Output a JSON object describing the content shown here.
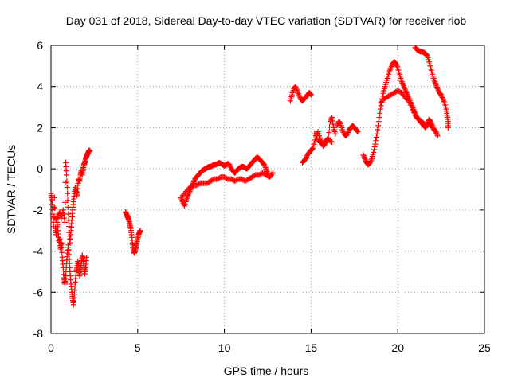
{
  "chart_data": {
    "type": "scatter",
    "title": "Day 031 of 2018, Sidereal Day-to-day VTEC variation (SDTVAR) for receiver riob",
    "xlabel": "GPS time / hours",
    "ylabel": "SDTVAR / TECUs",
    "xlim": [
      0,
      25
    ],
    "ylim": [
      -8,
      6
    ],
    "xticks": [
      0,
      5,
      10,
      15,
      20,
      25
    ],
    "yticks": [
      -8,
      -6,
      -4,
      -2,
      0,
      2,
      4,
      6
    ],
    "grid": true,
    "marker": "+",
    "color": "#ff0000",
    "segments": [
      {
        "name": "seg-a",
        "points": [
          [
            0.0,
            -1.2
          ],
          [
            0.05,
            -1.5
          ],
          [
            0.1,
            -2.2
          ],
          [
            0.15,
            -2.8
          ],
          [
            0.2,
            -1.4
          ],
          [
            0.25,
            -2.9
          ],
          [
            0.3,
            -3.2
          ],
          [
            0.35,
            -2.6
          ],
          [
            0.4,
            -3.0
          ],
          [
            0.45,
            -3.5
          ],
          [
            0.5,
            -3.4
          ],
          [
            0.55,
            -3.9
          ],
          [
            0.6,
            -3.6
          ],
          [
            0.65,
            -4.3
          ],
          [
            0.7,
            -4.8
          ],
          [
            0.75,
            -5.3
          ],
          [
            0.8,
            -5.6
          ],
          [
            0.85,
            -5.2
          ],
          [
            0.9,
            -4.6
          ],
          [
            0.95,
            -4.1
          ],
          [
            1.0,
            -3.7
          ],
          [
            1.05,
            -4.4
          ],
          [
            1.1,
            -5.0
          ],
          [
            1.15,
            -5.6
          ],
          [
            1.2,
            -6.0
          ],
          [
            1.25,
            -6.3
          ],
          [
            1.3,
            -6.6
          ],
          [
            1.35,
            -6.1
          ],
          [
            1.4,
            -5.5
          ],
          [
            1.45,
            -5.0
          ],
          [
            1.5,
            -4.8
          ],
          [
            1.55,
            -4.5
          ],
          [
            1.6,
            -4.7
          ],
          [
            1.65,
            -5.2
          ],
          [
            1.7,
            -4.9
          ],
          [
            1.75,
            -4.6
          ],
          [
            1.8,
            -4.2
          ],
          [
            1.85,
            -4.4
          ],
          [
            1.9,
            -4.7
          ],
          [
            1.95,
            -5.1
          ],
          [
            2.0,
            -4.8
          ],
          [
            2.05,
            -4.3
          ]
        ]
      },
      {
        "name": "seg-b",
        "points": [
          [
            0.3,
            -2.5
          ],
          [
            0.4,
            -2.3
          ],
          [
            0.5,
            -2.1
          ],
          [
            0.6,
            -2.4
          ],
          [
            0.7,
            -2.0
          ],
          [
            0.8,
            -2.6
          ],
          [
            0.85,
            0.3
          ],
          [
            0.9,
            -0.3
          ],
          [
            0.95,
            -1.2
          ],
          [
            1.0,
            -2.2
          ],
          [
            1.05,
            -3.1
          ],
          [
            1.1,
            -3.6
          ],
          [
            1.15,
            -3.0
          ],
          [
            1.2,
            -2.5
          ],
          [
            1.25,
            -2.0
          ],
          [
            1.3,
            -1.6
          ],
          [
            1.35,
            -1.2
          ],
          [
            1.4,
            -0.9
          ],
          [
            1.45,
            -1.1
          ],
          [
            1.5,
            -1.3
          ],
          [
            1.55,
            -0.8
          ],
          [
            1.6,
            -0.5
          ],
          [
            1.65,
            -0.6
          ],
          [
            1.7,
            -0.3
          ],
          [
            1.75,
            -0.1
          ],
          [
            1.8,
            -0.3
          ],
          [
            1.85,
            0.0
          ],
          [
            1.9,
            0.2
          ],
          [
            1.95,
            0.3
          ],
          [
            2.0,
            0.5
          ],
          [
            2.05,
            0.6
          ],
          [
            2.1,
            0.7
          ],
          [
            2.15,
            0.8
          ],
          [
            2.2,
            0.9
          ],
          [
            2.25,
            0.85
          ]
        ]
      },
      {
        "name": "seg-c",
        "points": [
          [
            4.3,
            -2.1
          ],
          [
            4.35,
            -2.2
          ],
          [
            4.4,
            -2.3
          ],
          [
            4.45,
            -2.4
          ],
          [
            4.5,
            -2.5
          ],
          [
            4.55,
            -2.7
          ],
          [
            4.6,
            -2.9
          ],
          [
            4.65,
            -3.2
          ],
          [
            4.7,
            -3.6
          ],
          [
            4.75,
            -3.9
          ],
          [
            4.8,
            -4.1
          ],
          [
            4.85,
            -4.0
          ],
          [
            4.9,
            -3.8
          ],
          [
            4.95,
            -3.6
          ],
          [
            5.0,
            -3.4
          ],
          [
            5.05,
            -3.2
          ],
          [
            5.1,
            -3.1
          ],
          [
            5.15,
            -3.0
          ]
        ]
      },
      {
        "name": "seg-d",
        "points": [
          [
            7.5,
            -1.4
          ],
          [
            7.6,
            -1.6
          ],
          [
            7.7,
            -1.8
          ],
          [
            7.8,
            -1.5
          ],
          [
            7.9,
            -1.3
          ],
          [
            8.0,
            -1.1
          ],
          [
            8.1,
            -0.9
          ],
          [
            8.2,
            -0.7
          ],
          [
            8.3,
            -0.5
          ],
          [
            8.4,
            -0.4
          ],
          [
            8.5,
            -0.3
          ],
          [
            8.6,
            -0.2
          ],
          [
            8.7,
            -0.1
          ],
          [
            8.8,
            -0.05
          ],
          [
            8.9,
            0.0
          ],
          [
            9.0,
            0.05
          ],
          [
            9.1,
            0.1
          ],
          [
            9.2,
            0.1
          ],
          [
            9.3,
            0.15
          ],
          [
            9.4,
            0.2
          ],
          [
            9.5,
            0.2
          ],
          [
            9.6,
            0.25
          ],
          [
            9.7,
            0.3
          ],
          [
            9.8,
            0.25
          ],
          [
            9.9,
            0.2
          ],
          [
            10.0,
            0.15
          ],
          [
            10.1,
            0.2
          ],
          [
            10.2,
            0.25
          ],
          [
            10.3,
            0.2
          ],
          [
            10.4,
            0.0
          ],
          [
            10.5,
            -0.1
          ],
          [
            10.6,
            -0.2
          ],
          [
            10.7,
            -0.1
          ],
          [
            10.8,
            0.0
          ],
          [
            10.9,
            0.05
          ],
          [
            11.0,
            0.1
          ],
          [
            11.1,
            0.1
          ],
          [
            11.2,
            0.05
          ],
          [
            11.3,
            0.0
          ],
          [
            11.4,
            0.1
          ],
          [
            11.5,
            0.2
          ],
          [
            11.6,
            0.3
          ],
          [
            11.7,
            0.4
          ],
          [
            11.8,
            0.5
          ],
          [
            11.9,
            0.55
          ],
          [
            12.0,
            0.5
          ],
          [
            12.1,
            0.4
          ],
          [
            12.2,
            0.3
          ],
          [
            12.3,
            0.2
          ],
          [
            12.4,
            0.0
          ],
          [
            12.5,
            -0.2
          ],
          [
            12.6,
            -0.4
          ],
          [
            12.7,
            -0.3
          ]
        ]
      },
      {
        "name": "seg-e",
        "points": [
          [
            7.6,
            -1.3
          ],
          [
            7.8,
            -1.1
          ],
          [
            8.0,
            -0.9
          ],
          [
            8.2,
            -0.8
          ],
          [
            8.4,
            -0.8
          ],
          [
            8.6,
            -0.7
          ],
          [
            8.8,
            -0.7
          ],
          [
            9.0,
            -0.7
          ],
          [
            9.2,
            -0.6
          ],
          [
            9.4,
            -0.5
          ],
          [
            9.6,
            -0.5
          ],
          [
            9.8,
            -0.4
          ],
          [
            10.0,
            -0.4
          ],
          [
            10.2,
            -0.5
          ],
          [
            10.4,
            -0.5
          ],
          [
            10.6,
            -0.6
          ],
          [
            10.8,
            -0.5
          ],
          [
            11.0,
            -0.5
          ],
          [
            11.2,
            -0.6
          ],
          [
            11.4,
            -0.5
          ],
          [
            11.6,
            -0.4
          ],
          [
            11.8,
            -0.3
          ],
          [
            12.0,
            -0.3
          ],
          [
            12.2,
            -0.2
          ],
          [
            12.4,
            -0.3
          ],
          [
            12.6,
            -0.4
          ],
          [
            12.8,
            -0.2
          ]
        ]
      },
      {
        "name": "seg-f",
        "points": [
          [
            13.8,
            3.3
          ],
          [
            13.9,
            3.6
          ],
          [
            14.0,
            3.9
          ],
          [
            14.1,
            4.0
          ],
          [
            14.2,
            3.8
          ],
          [
            14.3,
            3.6
          ],
          [
            14.4,
            3.4
          ],
          [
            14.5,
            3.3
          ],
          [
            14.6,
            3.4
          ],
          [
            14.7,
            3.5
          ],
          [
            14.8,
            3.6
          ],
          [
            14.9,
            3.7
          ],
          [
            15.0,
            3.6
          ]
        ]
      },
      {
        "name": "seg-g",
        "points": [
          [
            14.5,
            0.3
          ],
          [
            14.6,
            0.4
          ],
          [
            14.7,
            0.5
          ],
          [
            14.8,
            0.7
          ],
          [
            14.9,
            0.8
          ],
          [
            15.0,
            0.9
          ],
          [
            15.1,
            1.0
          ],
          [
            15.2,
            1.3
          ],
          [
            15.3,
            1.6
          ],
          [
            15.4,
            1.8
          ],
          [
            15.5,
            1.5
          ],
          [
            15.6,
            1.3
          ],
          [
            15.7,
            1.1
          ],
          [
            15.8,
            1.2
          ],
          [
            15.9,
            1.4
          ],
          [
            16.0,
            1.5
          ],
          [
            16.1,
            2.3
          ],
          [
            16.2,
            2.5
          ],
          [
            16.3,
            2.0
          ],
          [
            16.4,
            1.7
          ]
        ]
      },
      {
        "name": "seg-h",
        "points": [
          [
            15.2,
            1.7
          ],
          [
            15.4,
            1.4
          ],
          [
            15.6,
            1.2
          ],
          [
            15.8,
            1.3
          ],
          [
            16.0,
            1.4
          ],
          [
            16.2,
            1.3
          ]
        ]
      },
      {
        "name": "seg-i",
        "points": [
          [
            16.5,
            2.1
          ],
          [
            16.6,
            2.3
          ],
          [
            16.7,
            2.2
          ],
          [
            16.8,
            1.9
          ],
          [
            16.9,
            1.7
          ],
          [
            17.0,
            1.6
          ],
          [
            17.1,
            1.7
          ],
          [
            17.2,
            1.9
          ],
          [
            17.3,
            2.0
          ],
          [
            17.4,
            2.1
          ],
          [
            17.5,
            2.0
          ],
          [
            17.6,
            1.9
          ],
          [
            17.7,
            1.8
          ]
        ]
      },
      {
        "name": "seg-j",
        "points": [
          [
            18.0,
            0.7
          ],
          [
            18.1,
            0.5
          ],
          [
            18.2,
            0.3
          ],
          [
            18.3,
            0.2
          ],
          [
            18.4,
            0.3
          ],
          [
            18.5,
            0.5
          ],
          [
            18.6,
            0.8
          ],
          [
            18.7,
            1.2
          ],
          [
            18.8,
            1.7
          ],
          [
            18.9,
            2.3
          ],
          [
            19.0,
            2.9
          ],
          [
            19.1,
            3.4
          ],
          [
            19.2,
            3.8
          ],
          [
            19.3,
            4.1
          ],
          [
            19.4,
            4.4
          ],
          [
            19.5,
            4.7
          ],
          [
            19.6,
            4.9
          ],
          [
            19.7,
            5.1
          ],
          [
            19.8,
            5.2
          ],
          [
            19.9,
            5.1
          ],
          [
            20.0,
            4.9
          ],
          [
            20.1,
            4.6
          ],
          [
            20.2,
            4.3
          ],
          [
            20.3,
            4.1
          ],
          [
            20.4,
            3.9
          ],
          [
            20.5,
            3.7
          ],
          [
            20.6,
            3.5
          ],
          [
            20.7,
            3.3
          ],
          [
            20.8,
            3.1
          ],
          [
            20.9,
            2.9
          ],
          [
            21.0,
            2.7
          ],
          [
            21.1,
            2.5
          ],
          [
            21.2,
            2.4
          ],
          [
            21.3,
            2.3
          ],
          [
            21.4,
            2.2
          ],
          [
            21.5,
            2.1
          ],
          [
            21.6,
            2.0
          ],
          [
            21.7,
            2.2
          ],
          [
            21.8,
            2.4
          ],
          [
            21.9,
            2.3
          ],
          [
            22.0,
            2.1
          ],
          [
            22.1,
            1.9
          ],
          [
            22.2,
            1.8
          ],
          [
            22.3,
            1.6
          ]
        ]
      },
      {
        "name": "seg-k",
        "points": [
          [
            19.0,
            3.2
          ],
          [
            19.2,
            3.4
          ],
          [
            19.4,
            3.5
          ],
          [
            19.6,
            3.6
          ],
          [
            19.8,
            3.7
          ],
          [
            20.0,
            3.8
          ],
          [
            20.2,
            3.7
          ],
          [
            20.4,
            3.5
          ],
          [
            20.6,
            3.3
          ],
          [
            20.8,
            3.0
          ],
          [
            21.0,
            2.6
          ],
          [
            21.2,
            2.4
          ],
          [
            21.4,
            2.3
          ],
          [
            21.6,
            2.1
          ],
          [
            21.8,
            2.2
          ],
          [
            22.0,
            2.0
          ],
          [
            22.2,
            1.8
          ]
        ]
      },
      {
        "name": "seg-l",
        "points": [
          [
            21.0,
            5.9
          ],
          [
            21.1,
            5.8
          ],
          [
            21.2,
            5.75
          ],
          [
            21.3,
            5.7
          ],
          [
            21.4,
            5.7
          ],
          [
            21.5,
            5.65
          ],
          [
            21.6,
            5.6
          ],
          [
            21.7,
            5.5
          ],
          [
            21.8,
            5.2
          ],
          [
            21.9,
            4.9
          ],
          [
            22.0,
            4.6
          ],
          [
            22.1,
            4.3
          ],
          [
            22.2,
            4.1
          ],
          [
            22.3,
            3.9
          ],
          [
            22.4,
            3.7
          ],
          [
            22.5,
            3.6
          ],
          [
            22.6,
            3.4
          ],
          [
            22.7,
            3.2
          ],
          [
            22.8,
            2.9
          ],
          [
            22.85,
            2.6
          ],
          [
            22.9,
            2.3
          ],
          [
            22.9,
            2.0
          ]
        ]
      }
    ]
  }
}
